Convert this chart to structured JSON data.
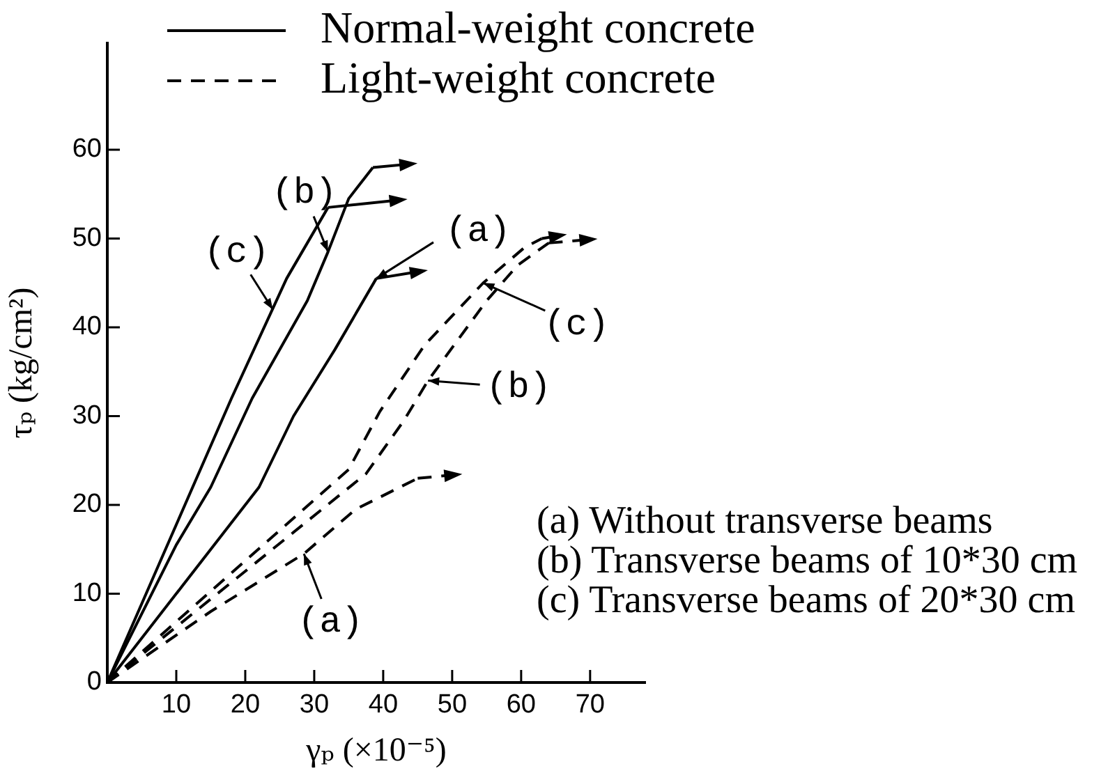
{
  "chart_data": {
    "type": "line",
    "xlabel": "γₚ (×10⁻⁵)",
    "ylabel": "τₚ (kg/cm²)",
    "xlim": [
      0,
      78
    ],
    "xticks": [
      10,
      20,
      30,
      40,
      50,
      60,
      70
    ],
    "ylim": [
      0,
      72
    ],
    "yticks": [
      0,
      10,
      20,
      30,
      40,
      50,
      60
    ],
    "legend": "top",
    "series": [
      {
        "name": "Normal-weight concrete",
        "color": "#000000",
        "line_style": "solid",
        "x": [
          0,
          11,
          22,
          27,
          33,
          39
        ],
        "values": [
          0,
          11,
          22,
          30,
          37.5,
          45.5
        ]
      },
      {
        "color": "#000000",
        "line_style": "solid",
        "x": [
          0,
          10,
          15,
          21,
          29,
          32,
          35,
          38.5
        ],
        "values": [
          0,
          15.5,
          22,
          32,
          43,
          48.5,
          54.5,
          58
        ]
      },
      {
        "color": "#000000",
        "line_style": "solid",
        "x": [
          0,
          9,
          18,
          26,
          32
        ],
        "values": [
          0,
          16,
          32,
          45.5,
          53.5
        ]
      },
      {
        "name": "Light-weight concrete",
        "color": "#000000",
        "line_style": "dashed",
        "x": [
          0,
          15,
          28.5,
          36,
          45
        ],
        "values": [
          0,
          8,
          14.5,
          19.5,
          23
        ]
      },
      {
        "color": "#000000",
        "line_style": "dashed",
        "x": [
          0,
          37.5,
          43,
          46.5,
          55,
          59.5,
          64
        ],
        "values": [
          0,
          23.5,
          29.5,
          34,
          43,
          47,
          49.5
        ]
      },
      {
        "color": "#000000",
        "line_style": "dashed",
        "x": [
          0,
          35,
          39.5,
          46,
          54.5,
          60.5,
          63
        ],
        "values": [
          0,
          24,
          30.5,
          38,
          45,
          49,
          50
        ]
      }
    ],
    "annotations": [
      {
        "text": "(c)",
        "x": 24,
        "y": 42
      },
      {
        "text": "(b)",
        "x": 32,
        "y": 48.5
      },
      {
        "text": "(a)",
        "x": 39,
        "y": 45.5
      },
      {
        "text": "(c)",
        "x": 54.5,
        "y": 45
      },
      {
        "text": "(b)",
        "x": 46.5,
        "y": 34
      },
      {
        "text": "(a)",
        "x": 28.5,
        "y": 14.5
      },
      "(a) Without transverse beams",
      "(b) Transverse beams of 10*30 cm",
      "(c) Transverse beams of 20*30 cm"
    ]
  }
}
